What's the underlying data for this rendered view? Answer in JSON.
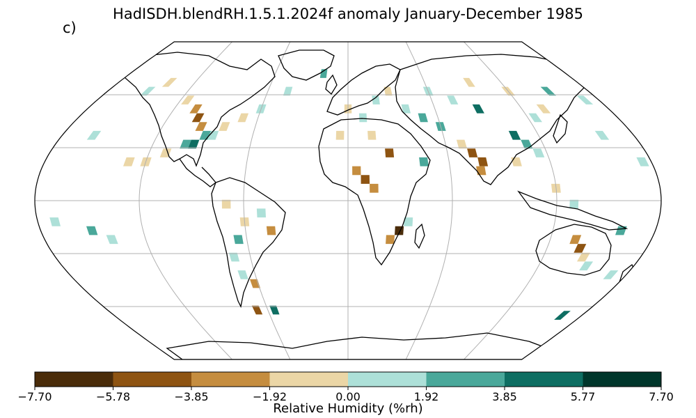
{
  "title": "HadISDH.blendRH.1.5.1.2024f anomaly January-December 1985",
  "panel_label": "c)",
  "projection": "Robinson",
  "colorbar": {
    "label": "Relative Humidity (%rh)",
    "ticks": [
      "−7.70",
      "−5.78",
      "−3.85",
      "−1.92",
      "0.00",
      "1.92",
      "3.85",
      "5.77",
      "7.70"
    ],
    "tick_values": [
      -7.7,
      -5.78,
      -3.85,
      -1.92,
      0.0,
      1.92,
      3.85,
      5.77,
      7.7
    ],
    "colors": [
      "#4a2c0a",
      "#8e5412",
      "#c58d3f",
      "#ebd6a6",
      "#ade0d8",
      "#4aa89a",
      "#0e6e62",
      "#00362b"
    ]
  },
  "colors": {
    "land_outline": "#000000",
    "gridline": "#b0b0b0",
    "missing": "#ffffff"
  },
  "grid": {
    "meridians_deg": [
      -180,
      -120,
      -60,
      0,
      60,
      120,
      180
    ],
    "parallels_deg": [
      -60,
      -30,
      0,
      30,
      60
    ]
  },
  "anomaly_cells": [
    {
      "lon": -130,
      "lat": 22,
      "bin": 3
    },
    {
      "lon": -120,
      "lat": 22,
      "bin": 3
    },
    {
      "lon": -110,
      "lat": 27,
      "bin": 3
    },
    {
      "lon": -100,
      "lat": 32,
      "bin": 5
    },
    {
      "lon": -95,
      "lat": 32,
      "bin": 6
    },
    {
      "lon": -90,
      "lat": 37,
      "bin": 5
    },
    {
      "lon": -85,
      "lat": 37,
      "bin": 4
    },
    {
      "lon": -95,
      "lat": 42,
      "bin": 2
    },
    {
      "lon": -100,
      "lat": 47,
      "bin": 1
    },
    {
      "lon": -105,
      "lat": 52,
      "bin": 2
    },
    {
      "lon": -115,
      "lat": 57,
      "bin": 3
    },
    {
      "lon": -150,
      "lat": 62,
      "bin": 4
    },
    {
      "lon": -140,
      "lat": 67,
      "bin": 3
    },
    {
      "lon": -60,
      "lat": 52,
      "bin": 4
    },
    {
      "lon": -70,
      "lat": 47,
      "bin": 3
    },
    {
      "lon": -80,
      "lat": 42,
      "bin": 3
    },
    {
      "lon": -45,
      "lat": 62,
      "bin": 4
    },
    {
      "lon": -160,
      "lat": 37,
      "bin": 4
    },
    {
      "lon": -70,
      "lat": -2,
      "bin": 3
    },
    {
      "lon": -60,
      "lat": -12,
      "bin": 3
    },
    {
      "lon": -50,
      "lat": -7,
      "bin": 4
    },
    {
      "lon": -45,
      "lat": -17,
      "bin": 2
    },
    {
      "lon": -65,
      "lat": -22,
      "bin": 5
    },
    {
      "lon": -70,
      "lat": -32,
      "bin": 4
    },
    {
      "lon": -68,
      "lat": -42,
      "bin": 4
    },
    {
      "lon": -62,
      "lat": -47,
      "bin": 2
    },
    {
      "lon": -68,
      "lat": -62,
      "bin": 1
    },
    {
      "lon": -55,
      "lat": -62,
      "bin": 6
    },
    {
      "lon": -170,
      "lat": -12,
      "bin": 4
    },
    {
      "lon": -150,
      "lat": -17,
      "bin": 5
    },
    {
      "lon": -140,
      "lat": -22,
      "bin": 4
    },
    {
      "lon": 5,
      "lat": 17,
      "bin": 2
    },
    {
      "lon": 10,
      "lat": 12,
      "bin": 1
    },
    {
      "lon": 15,
      "lat": 7,
      "bin": 2
    },
    {
      "lon": 25,
      "lat": 27,
      "bin": 1
    },
    {
      "lon": 30,
      "lat": -17,
      "bin": 0
    },
    {
      "lon": 25,
      "lat": -22,
      "bin": 2
    },
    {
      "lon": 35,
      "lat": -12,
      "bin": 4
    },
    {
      "lon": 45,
      "lat": 22,
      "bin": 5
    },
    {
      "lon": 50,
      "lat": 47,
      "bin": 5
    },
    {
      "lon": 40,
      "lat": 52,
      "bin": 4
    },
    {
      "lon": 60,
      "lat": 42,
      "bin": 5
    },
    {
      "lon": 75,
      "lat": 27,
      "bin": 1
    },
    {
      "lon": 80,
      "lat": 22,
      "bin": 1
    },
    {
      "lon": 78,
      "lat": 17,
      "bin": 2
    },
    {
      "lon": 70,
      "lat": 32,
      "bin": 3
    },
    {
      "lon": 90,
      "lat": 52,
      "bin": 6
    },
    {
      "lon": 105,
      "lat": 37,
      "bin": 6
    },
    {
      "lon": 110,
      "lat": 32,
      "bin": 5
    },
    {
      "lon": 115,
      "lat": 27,
      "bin": 4
    },
    {
      "lon": 100,
      "lat": 22,
      "bin": 3
    },
    {
      "lon": 125,
      "lat": 47,
      "bin": 4
    },
    {
      "lon": 135,
      "lat": 52,
      "bin": 3
    },
    {
      "lon": 120,
      "lat": 62,
      "bin": 3
    },
    {
      "lon": 140,
      "lat": -27,
      "bin": 1
    },
    {
      "lon": 135,
      "lat": -22,
      "bin": 2
    },
    {
      "lon": 145,
      "lat": -32,
      "bin": 3
    },
    {
      "lon": 150,
      "lat": -37,
      "bin": 4
    },
    {
      "lon": 170,
      "lat": -42,
      "bin": 4
    },
    {
      "lon": 160,
      "lat": -17,
      "bin": 5
    },
    {
      "lon": 130,
      "lat": -2,
      "bin": 4
    },
    {
      "lon": 120,
      "lat": 7,
      "bin": 3
    },
    {
      "lon": 165,
      "lat": -65,
      "bin": 6
    },
    {
      "lon": 0,
      "lat": 52,
      "bin": 3
    },
    {
      "lon": 10,
      "lat": 47,
      "bin": 4
    },
    {
      "lon": 20,
      "lat": 57,
      "bin": 4
    },
    {
      "lon": 30,
      "lat": 62,
      "bin": 3
    },
    {
      "lon": -5,
      "lat": 37,
      "bin": 3
    },
    {
      "lon": 15,
      "lat": 37,
      "bin": 3
    },
    {
      "lon": -20,
      "lat": 72,
      "bin": 5
    },
    {
      "lon": 60,
      "lat": 62,
      "bin": 4
    },
    {
      "lon": 75,
      "lat": 57,
      "bin": 4
    },
    {
      "lon": 95,
      "lat": 67,
      "bin": 3
    },
    {
      "lon": 150,
      "lat": 62,
      "bin": 5
    },
    {
      "lon": 170,
      "lat": 57,
      "bin": 4
    },
    {
      "lon": 160,
      "lat": 37,
      "bin": 4
    },
    {
      "lon": 175,
      "lat": 22,
      "bin": 4
    }
  ]
}
